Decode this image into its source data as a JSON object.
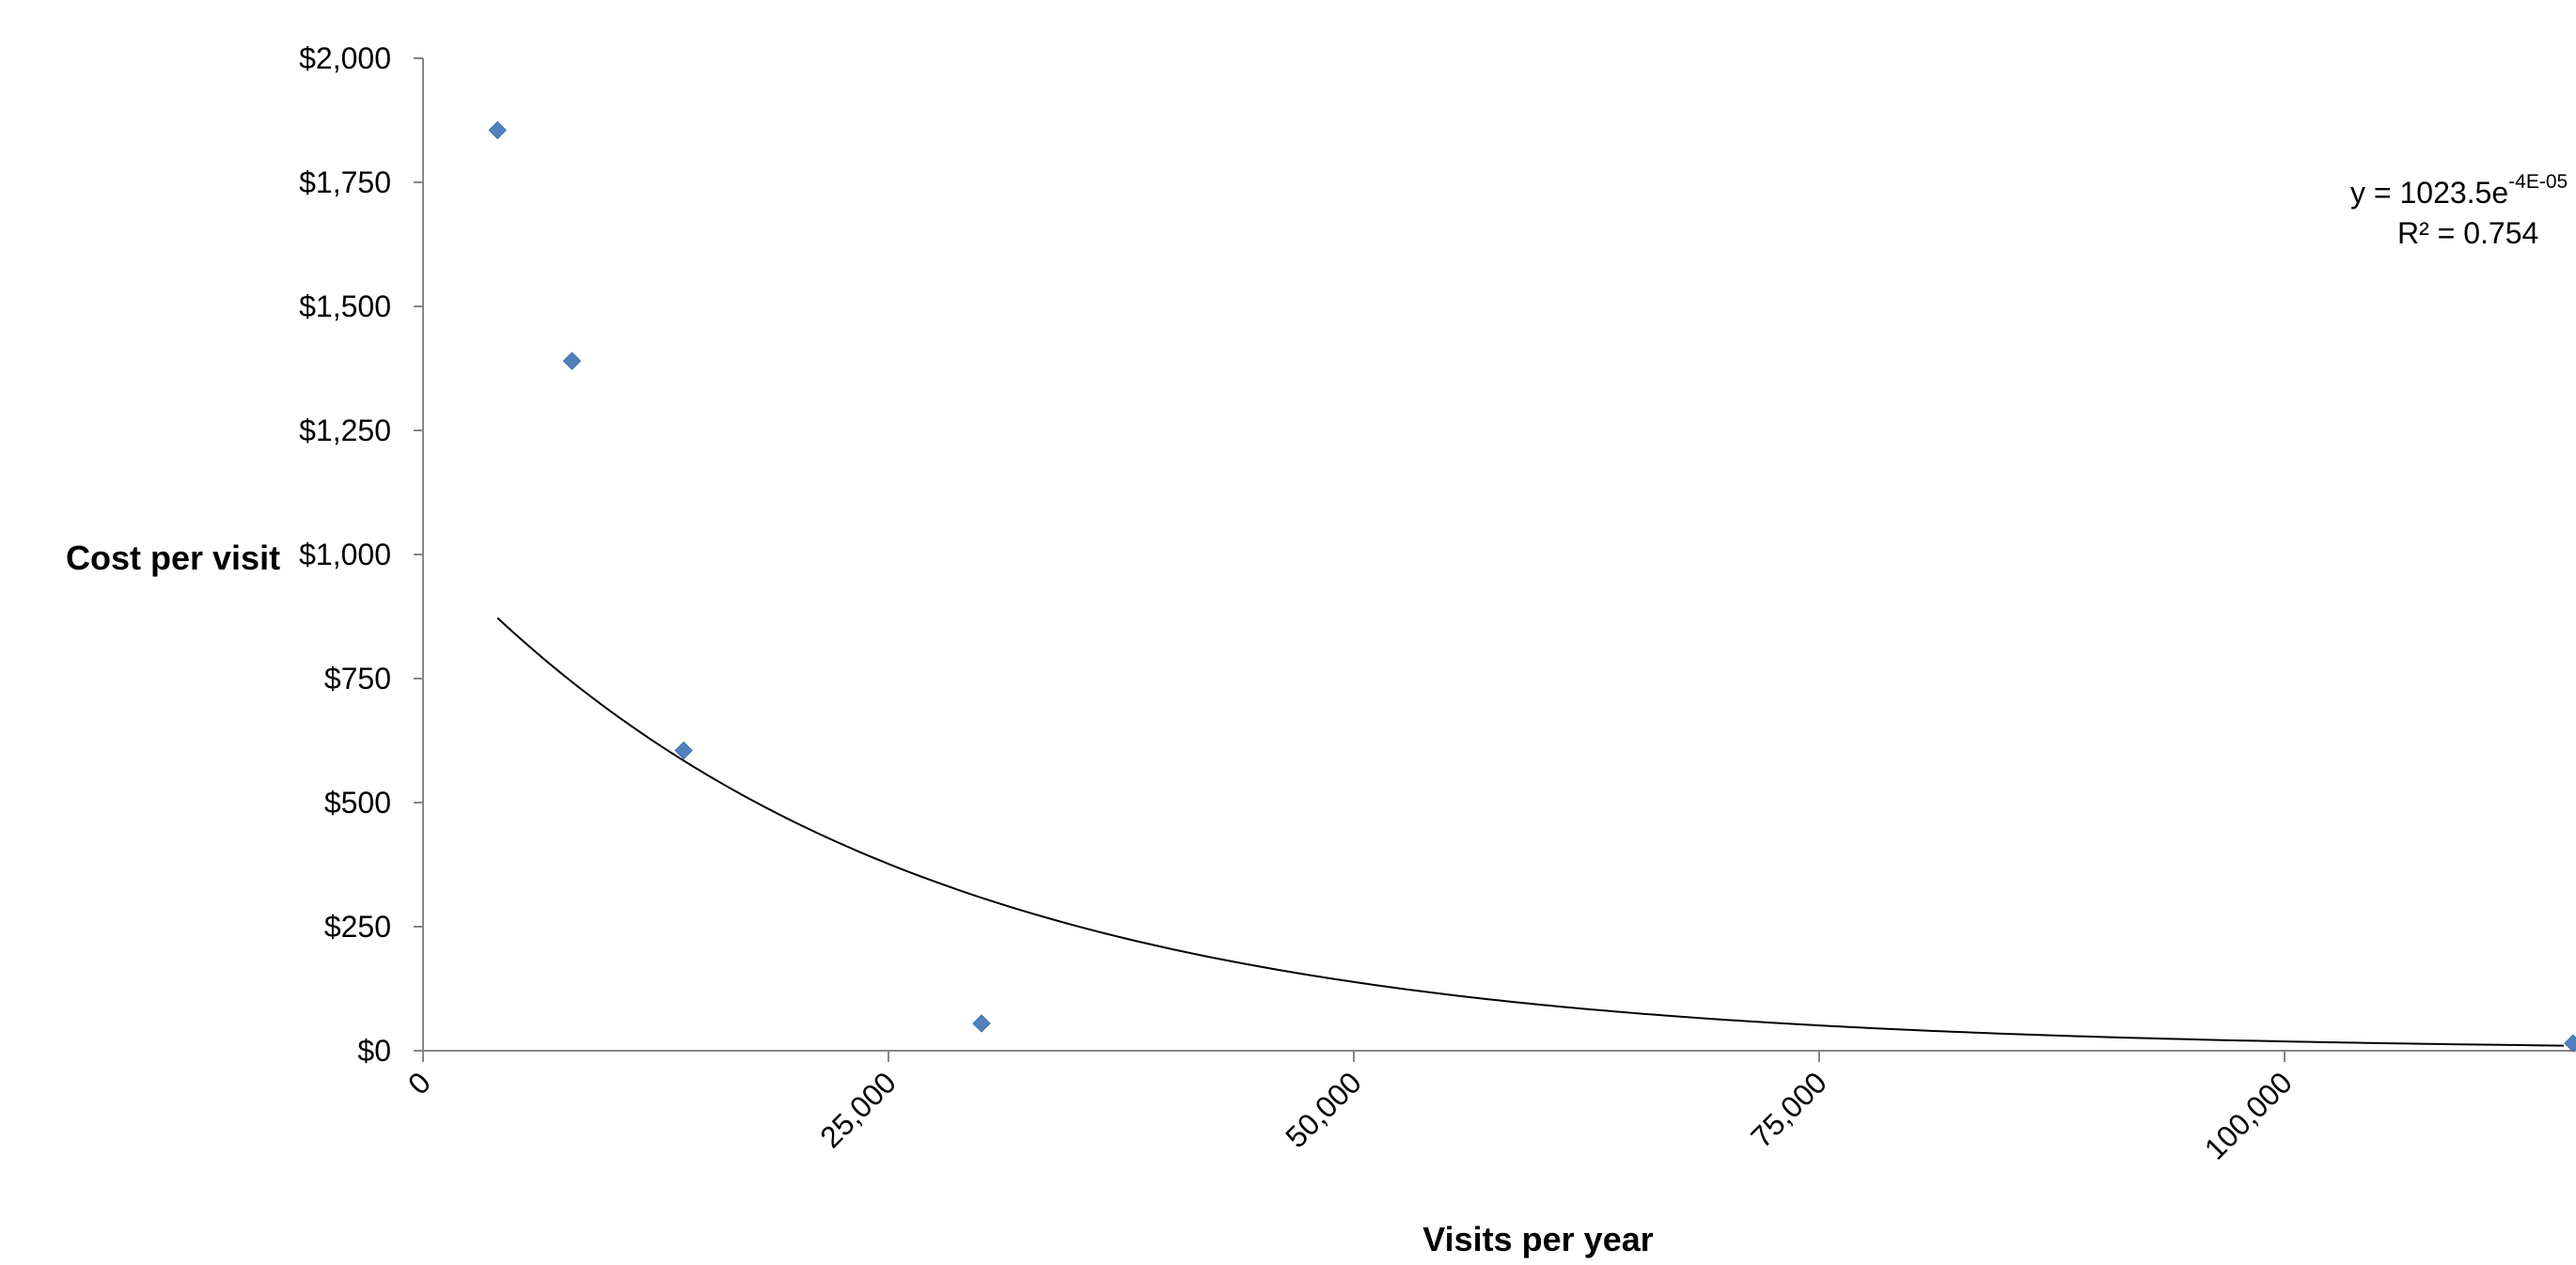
{
  "chart_data": {
    "type": "scatter",
    "title": "",
    "xlabel": "Visits per year",
    "ylabel": "Cost per visit",
    "xlim": [
      0,
      115000
    ],
    "ylim": [
      0,
      2000
    ],
    "x_ticks": [
      0,
      25000,
      50000,
      75000,
      100000
    ],
    "x_tick_labels": [
      "0",
      "25,000",
      "50,000",
      "75,000",
      "100,000"
    ],
    "y_ticks": [
      0,
      250,
      500,
      750,
      1000,
      1250,
      1500,
      1750,
      2000
    ],
    "y_tick_labels": [
      "$0",
      "$250",
      "$500",
      "$750",
      "$1,000",
      "$1,250",
      "$1,500",
      "$1,750",
      "$2,000"
    ],
    "grid": false,
    "legend": "none",
    "series": [
      {
        "marker": "diamond",
        "color": "#4F81BD",
        "points": [
          {
            "x": 4000,
            "y": 1855
          },
          {
            "x": 8000,
            "y": 1390
          },
          {
            "x": 14000,
            "y": 605
          },
          {
            "x": 30000,
            "y": 55
          },
          {
            "x": 115500,
            "y": 15
          }
        ]
      }
    ],
    "trendline": {
      "type": "exponential",
      "a": 1023.5,
      "b": -4e-05,
      "x_start": 4000,
      "x_end": 115000,
      "color": "#000000",
      "equation_prefix": "y = 1023.5e",
      "equation_exponent": "-4E-05",
      "r_squared_label": "R² = 0.754"
    }
  }
}
